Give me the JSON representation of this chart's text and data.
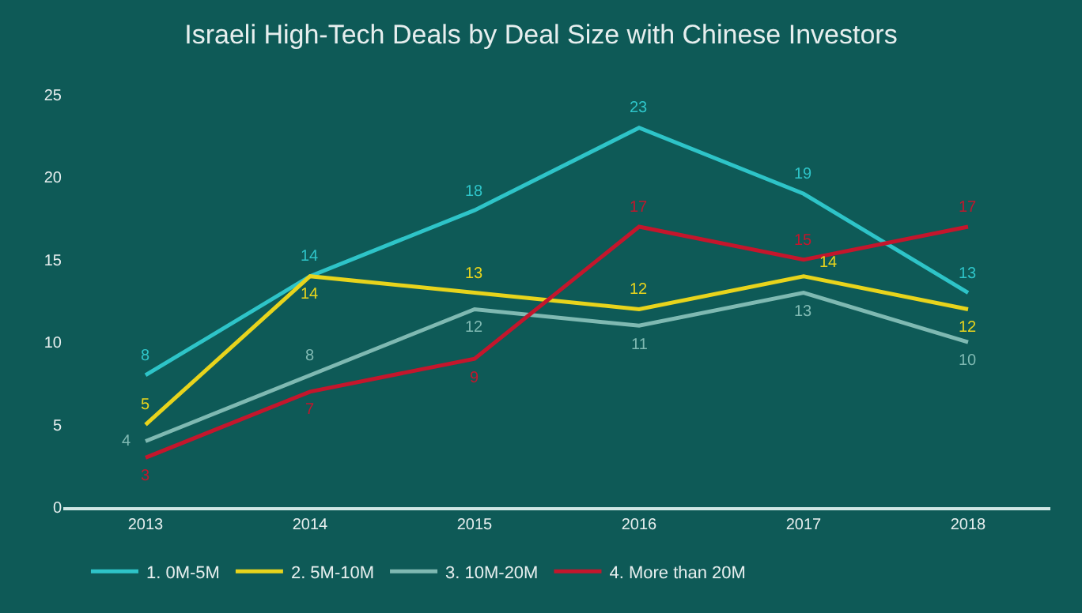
{
  "chart_data": {
    "type": "line",
    "title": "Israeli High-Tech Deals by Deal Size with Chinese Investors",
    "categories": [
      "2013",
      "2014",
      "2015",
      "2016",
      "2017",
      "2018"
    ],
    "series": [
      {
        "name": "1. 0M-5M",
        "color": "#2ec4c8",
        "values": [
          8,
          14,
          18,
          23,
          19,
          13
        ]
      },
      {
        "name": "2. 5M-10M",
        "color": "#e8d41c",
        "values": [
          5,
          14,
          13,
          12,
          14,
          12
        ]
      },
      {
        "name": "3. 10M-20M",
        "color": "#7fb9b2",
        "values": [
          4,
          8,
          12,
          11,
          13,
          10
        ]
      },
      {
        "name": "4. More than 20M",
        "color": "#c4162c",
        "values": [
          3,
          7,
          9,
          17,
          15,
          17
        ]
      }
    ],
    "ylim": [
      0,
      25
    ],
    "yticks": [
      0,
      5,
      10,
      15,
      20,
      25
    ],
    "grid": false,
    "legend": "bottom",
    "marker": "none",
    "line_style": "solid",
    "data_labels": true
  }
}
